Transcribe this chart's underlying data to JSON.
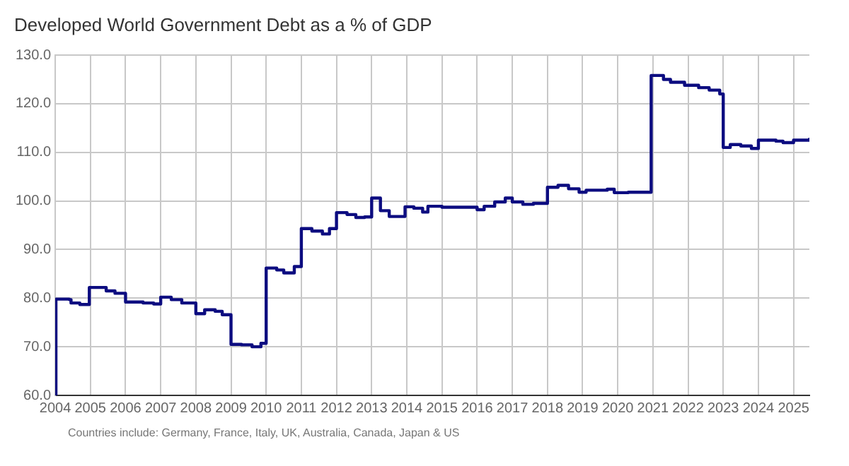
{
  "chart_data": {
    "type": "step",
    "title": "Developed World Government Debt as a % of GDP",
    "annotations": [
      "Countries include: Germany, France, Italy, UK, Australia, Canada, Japan & US"
    ],
    "x": [
      2004,
      2004.02,
      2004.4,
      2004.45,
      2004.7,
      2004.97,
      2005.45,
      2005.7,
      2006.0,
      2006.5,
      2006.8,
      2007.0,
      2007.3,
      2007.6,
      2008.0,
      2008.25,
      2008.55,
      2008.75,
      2009.0,
      2009.3,
      2009.6,
      2009.85,
      2010.0,
      2010.3,
      2010.5,
      2010.8,
      2011.0,
      2011.3,
      2011.6,
      2011.8,
      2012.0,
      2012.3,
      2012.55,
      2012.8,
      2013.0,
      2013.25,
      2013.5,
      2013.95,
      2014.2,
      2014.45,
      2014.6,
      2015.0,
      2016.0,
      2016.2,
      2016.5,
      2016.8,
      2017.0,
      2017.3,
      2017.6,
      2018.0,
      2018.3,
      2018.6,
      2018.9,
      2019.1,
      2019.7,
      2019.9,
      2020.3,
      2020.95,
      2021.3,
      2021.5,
      2021.9,
      2022.3,
      2022.6,
      2022.9,
      2023.0,
      2023.2,
      2023.5,
      2023.8,
      2024.0,
      2024.5,
      2024.7,
      2025.0,
      2025.45
    ],
    "series": [
      {
        "color": "#0c0c80",
        "values": [
          60,
          79.8,
          79.7,
          79.0,
          78.7,
          82.2,
          81.5,
          81.0,
          79.2,
          79.0,
          78.8,
          80.2,
          79.7,
          79.0,
          76.8,
          77.6,
          77.3,
          76.6,
          70.5,
          70.4,
          70.0,
          70.7,
          86.2,
          85.8,
          85.2,
          86.5,
          94.3,
          93.8,
          93.2,
          94.3,
          97.6,
          97.2,
          96.6,
          96.7,
          100.6,
          98.0,
          96.8,
          98.8,
          98.5,
          97.7,
          98.9,
          98.7,
          98.2,
          98.9,
          99.8,
          100.6,
          99.8,
          99.3,
          99.5,
          102.8,
          103.2,
          102.5,
          101.8,
          102.2,
          102.4,
          101.7,
          101.8,
          125.8,
          125.0,
          124.4,
          123.8,
          123.3,
          122.8,
          122.0,
          111.0,
          111.6,
          111.3,
          110.8,
          112.5,
          112.3,
          112.0,
          112.5,
          112.7
        ]
      }
    ],
    "xlim": [
      2004,
      2025.45
    ],
    "xticks": [
      2004,
      2005,
      2006,
      2007,
      2008,
      2009,
      2010,
      2011,
      2012,
      2013,
      2014,
      2015,
      2016,
      2017,
      2018,
      2019,
      2020,
      2021,
      2022,
      2023,
      2024,
      2025
    ],
    "ylim": [
      60,
      130
    ],
    "yticks": [
      {
        "value": 60,
        "label": "60.0"
      },
      {
        "value": 70,
        "label": "70.0"
      },
      {
        "value": 80,
        "label": "80.0"
      },
      {
        "value": 90,
        "label": "90.0"
      },
      {
        "value": 100,
        "label": "100.0"
      },
      {
        "value": 110,
        "label": "110.0"
      },
      {
        "value": 120,
        "label": "120.0"
      },
      {
        "value": 130,
        "label": "130.0"
      }
    ],
    "grid": true,
    "legend": false,
    "marker": "none",
    "line_style": "solid"
  }
}
